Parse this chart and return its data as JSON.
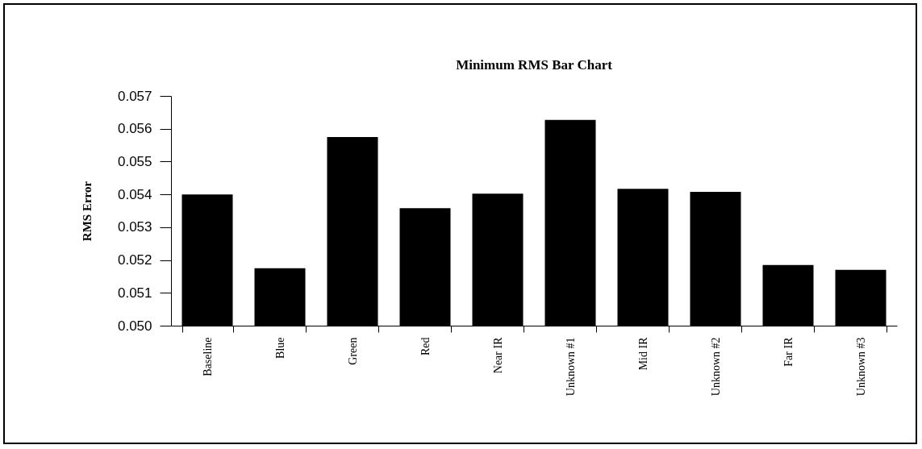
{
  "chart_data": {
    "type": "bar",
    "title": "Minimum RMS Bar Chart",
    "ylabel": "RMS Error",
    "categories": [
      "Baseline",
      "Blue",
      "Green",
      "Red",
      "Near IR",
      "Unknown #1",
      "Mid IR",
      "Unknown #2",
      "Far IR",
      "Unknown #3"
    ],
    "values": [
      0.054,
      0.05175,
      0.05575,
      0.05358,
      0.05402,
      0.05627,
      0.05417,
      0.05408,
      0.05185,
      0.0517
    ],
    "color": "#000000",
    "ylim": [
      0.05,
      0.057
    ],
    "yticks": [
      {
        "value": 0.05,
        "label": "0.050"
      },
      0.051,
      0.052,
      0.053,
      0.054,
      0.055,
      0.056,
      0.057
    ],
    "grid": false
  }
}
